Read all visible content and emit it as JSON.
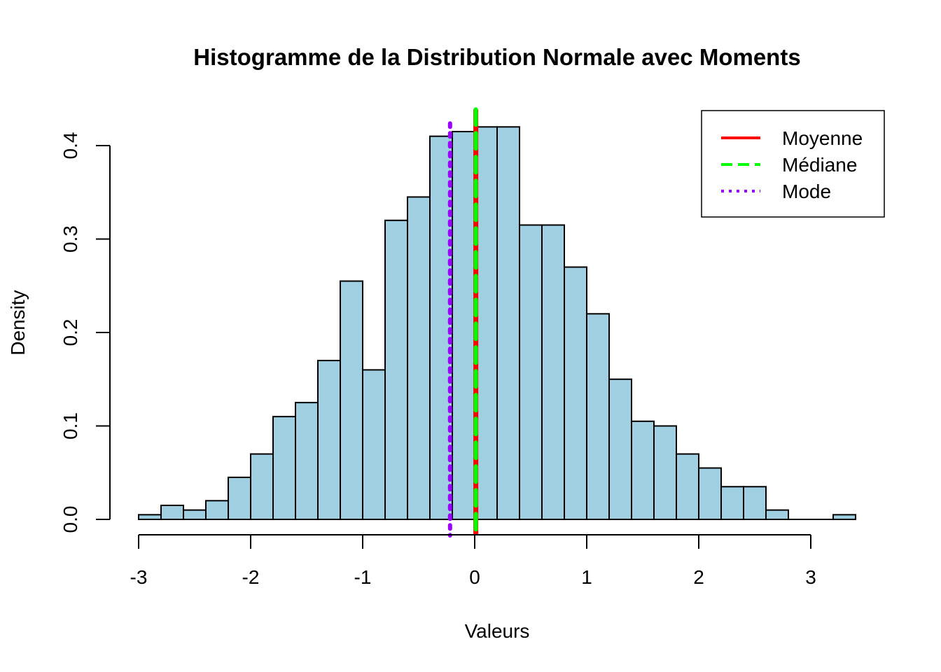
{
  "chart_data": {
    "type": "bar",
    "title": "Histogramme de la Distribution Normale avec Moments",
    "xlabel": "Valeurs",
    "ylabel": "Density",
    "xlim": [
      -3.2,
      3.4
    ],
    "ylim": [
      0,
      0.42
    ],
    "x_ticks": [
      "-3",
      "-2",
      "-1",
      "0",
      "1",
      "2",
      "3"
    ],
    "y_ticks": [
      "0.0",
      "0.1",
      "0.2",
      "0.3",
      "0.4"
    ],
    "bin_width": 0.2,
    "bins": [
      {
        "x0": -3.0,
        "x1": -2.8,
        "density": 0.005
      },
      {
        "x0": -2.8,
        "x1": -2.6,
        "density": 0.015
      },
      {
        "x0": -2.6,
        "x1": -2.4,
        "density": 0.01
      },
      {
        "x0": -2.4,
        "x1": -2.2,
        "density": 0.02
      },
      {
        "x0": -2.2,
        "x1": -2.0,
        "density": 0.045
      },
      {
        "x0": -2.0,
        "x1": -1.8,
        "density": 0.07
      },
      {
        "x0": -1.8,
        "x1": -1.6,
        "density": 0.11
      },
      {
        "x0": -1.6,
        "x1": -1.4,
        "density": 0.125
      },
      {
        "x0": -1.4,
        "x1": -1.2,
        "density": 0.17
      },
      {
        "x0": -1.2,
        "x1": -1.0,
        "density": 0.255
      },
      {
        "x0": -1.0,
        "x1": -0.8,
        "density": 0.16
      },
      {
        "x0": -0.8,
        "x1": -0.6,
        "density": 0.32
      },
      {
        "x0": -0.6,
        "x1": -0.4,
        "density": 0.345
      },
      {
        "x0": -0.4,
        "x1": -0.2,
        "density": 0.41
      },
      {
        "x0": -0.2,
        "x1": 0.0,
        "density": 0.415
      },
      {
        "x0": 0.0,
        "x1": 0.2,
        "density": 0.42
      },
      {
        "x0": 0.2,
        "x1": 0.4,
        "density": 0.42
      },
      {
        "x0": 0.4,
        "x1": 0.6,
        "density": 0.315
      },
      {
        "x0": 0.6,
        "x1": 0.8,
        "density": 0.315
      },
      {
        "x0": 0.8,
        "x1": 1.0,
        "density": 0.27
      },
      {
        "x0": 1.0,
        "x1": 1.2,
        "density": 0.22
      },
      {
        "x0": 1.2,
        "x1": 1.4,
        "density": 0.15
      },
      {
        "x0": 1.4,
        "x1": 1.6,
        "density": 0.105
      },
      {
        "x0": 1.6,
        "x1": 1.8,
        "density": 0.1
      },
      {
        "x0": 1.8,
        "x1": 2.0,
        "density": 0.07
      },
      {
        "x0": 2.0,
        "x1": 2.2,
        "density": 0.055
      },
      {
        "x0": 2.2,
        "x1": 2.4,
        "density": 0.035
      },
      {
        "x0": 2.4,
        "x1": 2.6,
        "density": 0.035
      },
      {
        "x0": 2.6,
        "x1": 2.8,
        "density": 0.01
      },
      {
        "x0": 2.8,
        "x1": 3.0,
        "density": 0.0
      },
      {
        "x0": 3.0,
        "x1": 3.2,
        "density": 0.0
      },
      {
        "x0": 3.2,
        "x1": 3.4,
        "density": 0.005
      }
    ],
    "bar_color": "#9FCFE0",
    "bar_border_color": "#000000",
    "vertical_lines": [
      {
        "name": "Moyenne",
        "x": 0.01,
        "color": "#FF0000",
        "style": "solid"
      },
      {
        "name": "Médiane",
        "x": 0.01,
        "color": "#00FF00",
        "style": "dashed"
      },
      {
        "name": "Mode",
        "x": -0.22,
        "color": "#9A00FF",
        "style": "dotted"
      }
    ],
    "legend": {
      "position": "top-right",
      "entries": [
        {
          "label": "Moyenne",
          "color": "#FF0000",
          "style": "solid"
        },
        {
          "label": "Médiane",
          "color": "#00FF00",
          "style": "dashed"
        },
        {
          "label": "Mode",
          "color": "#9A00FF",
          "style": "dotted"
        }
      ]
    }
  }
}
